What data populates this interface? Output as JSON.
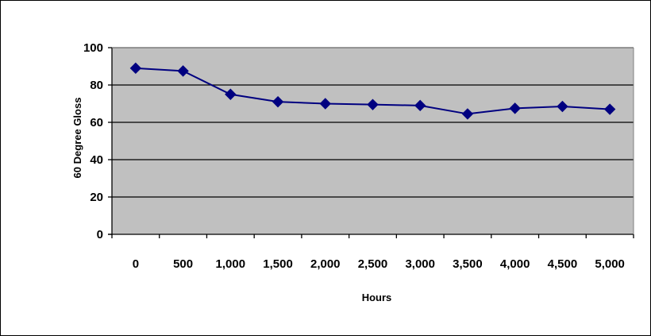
{
  "chart_data": {
    "type": "line",
    "title": "",
    "xlabel": "Hours",
    "ylabel": "60 Degree Gloss",
    "categories": [
      "0",
      "500",
      "1,000",
      "1,500",
      "2,000",
      "2,500",
      "3,000",
      "3,500",
      "4,000",
      "4,500",
      "5,000"
    ],
    "series": [
      {
        "values": [
          89,
          87.5,
          75,
          71,
          70,
          69.5,
          69,
          64.5,
          67.5,
          68.5,
          67
        ]
      }
    ],
    "ylim": [
      0,
      100
    ],
    "yticks": [
      0,
      20,
      40,
      60,
      80,
      100
    ],
    "ytick_labels": [
      "0",
      "20",
      "40",
      "60",
      "80",
      "100"
    ],
    "grid": true,
    "legend": "none",
    "colors": {
      "plot_background": "#c0c0c0",
      "line": "#000080",
      "marker": "#000080",
      "gridline": "#000000"
    }
  }
}
